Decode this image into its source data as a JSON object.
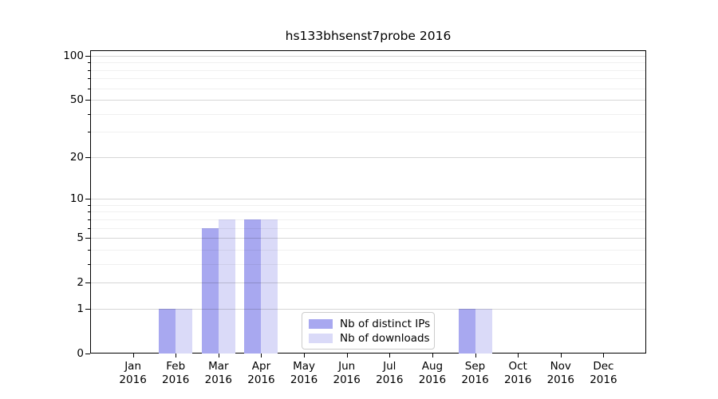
{
  "chart_data": {
    "type": "bar",
    "title": "hs133bhsenst7probe 2016",
    "categories": [
      "Jan",
      "Feb",
      "Mar",
      "Apr",
      "May",
      "Jun",
      "Jul",
      "Aug",
      "Sep",
      "Oct",
      "Nov",
      "Dec"
    ],
    "category_year": "2016",
    "series": [
      {
        "name": "Nb of distinct IPs",
        "color": "#a8a8f0",
        "values": [
          0,
          1,
          6,
          7,
          0,
          0,
          0,
          0,
          1,
          0,
          0,
          0
        ]
      },
      {
        "name": "Nb of downloads",
        "color": "#dadaf8",
        "values": [
          0,
          1,
          7,
          7,
          0,
          0,
          0,
          0,
          1,
          0,
          0,
          0
        ]
      }
    ],
    "xlabel": "",
    "ylabel": "",
    "yscale": "log1p",
    "ylim": [
      0,
      109
    ],
    "yticks": [
      0,
      1,
      2,
      5,
      10,
      20,
      50,
      100
    ],
    "yticks_minor": [
      3,
      4,
      6,
      7,
      8,
      9,
      30,
      40,
      60,
      70,
      80,
      90
    ],
    "grid": true,
    "legend_position": "lower-center"
  }
}
